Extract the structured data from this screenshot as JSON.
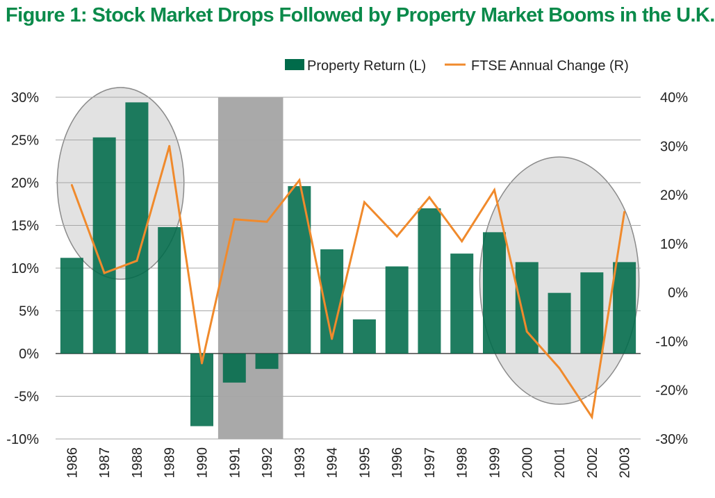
{
  "title": "Figure 1: Stock Market Drops Followed by Property Market Booms in the U.K.",
  "colors": {
    "title": "#0a8a4a",
    "bars": "#006b4a",
    "line": "#f08a2c",
    "recession_band": "#a9a9a9",
    "highlight_ellipse_fill": "#e2e2e2",
    "highlight_ellipse_stroke": "#8a8a8a",
    "grid": "#a6a6a6"
  },
  "chart_data": {
    "type": "bar+line",
    "categories": [
      "1986",
      "1987",
      "1988",
      "1989",
      "1990",
      "1991",
      "1992",
      "1993",
      "1994",
      "1995",
      "1996",
      "1997",
      "1998",
      "1999",
      "2000",
      "2001",
      "2002",
      "2003"
    ],
    "series": [
      {
        "name": "Property Return (L)",
        "type": "bar",
        "axis": "left",
        "values": [
          11.2,
          25.3,
          29.4,
          14.8,
          -8.5,
          -3.4,
          -1.8,
          19.6,
          12.2,
          4.0,
          10.2,
          17.0,
          11.7,
          14.2,
          10.7,
          7.1,
          9.5,
          10.7
        ]
      },
      {
        "name": "FTSE Annual Change (R)",
        "type": "line",
        "axis": "right",
        "values": [
          22,
          4,
          6.5,
          30,
          -14.5,
          15,
          14.5,
          23,
          -9.5,
          18.5,
          11.5,
          19.5,
          10.5,
          21,
          -8,
          -15.5,
          -25.5,
          16.5
        ]
      }
    ],
    "left_axis": {
      "range": [
        -10,
        30
      ],
      "ticks": [
        "30%",
        "25%",
        "20%",
        "15%",
        "10%",
        "5%",
        "0%",
        "-5%",
        "-10%"
      ]
    },
    "right_axis": {
      "range": [
        -30,
        40
      ],
      "ticks": [
        "40%",
        "30%",
        "20%",
        "10%",
        "0%",
        "-10%",
        "-20%",
        "-30%"
      ]
    },
    "shaded_band": [
      "1991",
      "1992"
    ],
    "highlighted_ranges": [
      [
        "1986",
        "1989"
      ],
      [
        "1999",
        "2003"
      ]
    ],
    "legend": {
      "position": "top"
    },
    "grid": true
  }
}
